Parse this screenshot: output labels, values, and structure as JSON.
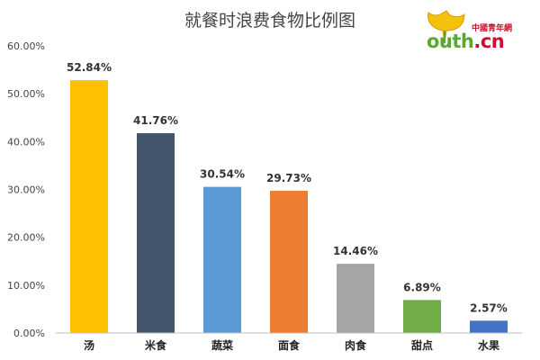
{
  "logo": {
    "cn_text": "中國青年網",
    "en_prefix": "outh",
    "en_suffix": ".cn"
  },
  "chart_data": {
    "type": "bar",
    "title": "就餐时浪费食物比例图",
    "categories": [
      "汤",
      "米食",
      "蔬菜",
      "面食",
      "肉食",
      "甜点",
      "水果"
    ],
    "values": [
      52.84,
      41.76,
      30.54,
      29.73,
      14.46,
      6.89,
      2.57
    ],
    "value_labels": [
      "52.84%",
      "41.76%",
      "30.54%",
      "29.73%",
      "14.46%",
      "6.89%",
      "2.57%"
    ],
    "colors": [
      "#FFC000",
      "#44546A",
      "#5B9BD5",
      "#ED7D31",
      "#A5A5A5",
      "#70AD47",
      "#4472C4"
    ],
    "ylim": [
      0,
      60
    ],
    "yticks": [
      0,
      10,
      20,
      30,
      40,
      50,
      60
    ],
    "ytick_labels": [
      "0.00%",
      "10.00%",
      "20.00%",
      "30.00%",
      "40.00%",
      "50.00%",
      "60.00%"
    ],
    "xlabel": "",
    "ylabel": "",
    "grid": false,
    "legend": "none"
  }
}
